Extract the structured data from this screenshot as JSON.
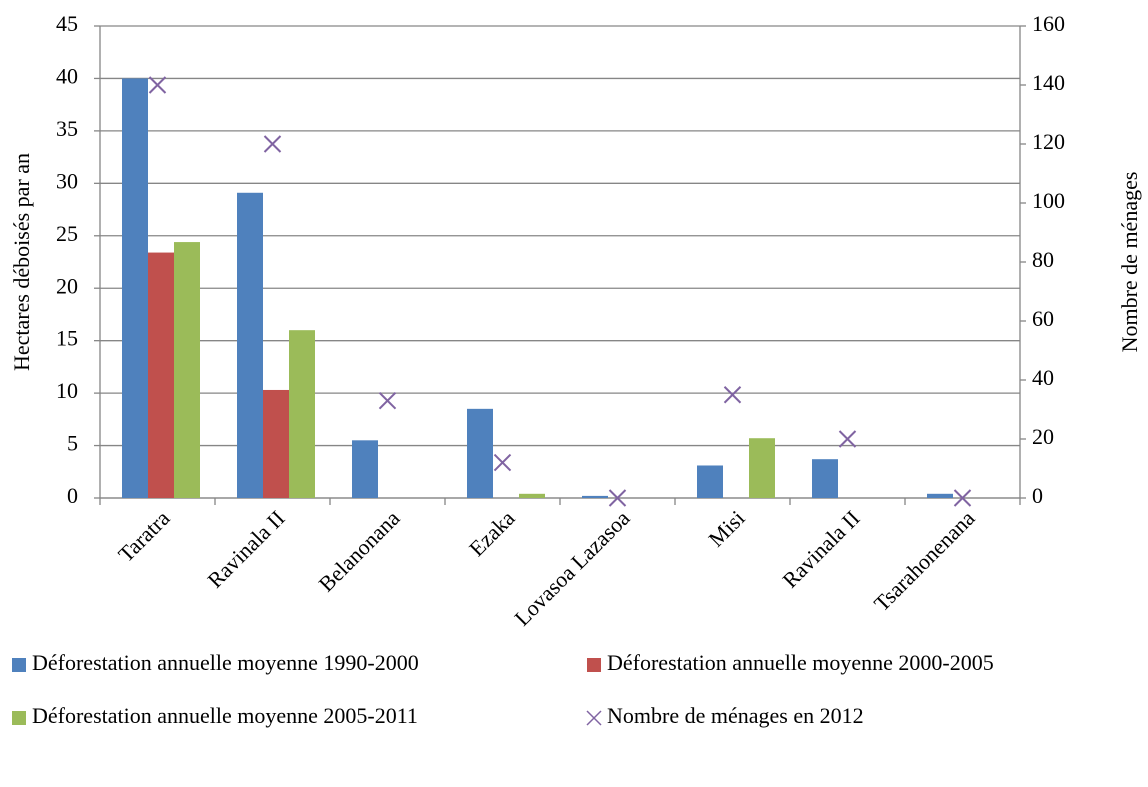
{
  "chart_data": {
    "type": "bar",
    "categories": [
      "Taratra",
      "Ravinala II",
      "Belanonana",
      "Ezaka",
      "Lovasoa Lazasoa",
      "Misi",
      "Ravinala II",
      "Tsarahonenana"
    ],
    "series": [
      {
        "name": "Déforestation annuelle moyenne 1990-2000",
        "color": "#4f81bd",
        "type": "bar",
        "values": [
          40,
          29.1,
          5.5,
          8.5,
          0.2,
          3.1,
          3.7,
          0.4
        ]
      },
      {
        "name": "Déforestation annuelle moyenne 2000-2005",
        "color": "#c0504d",
        "type": "bar",
        "values": [
          23.4,
          10.3,
          0,
          0,
          0,
          0,
          0,
          0
        ]
      },
      {
        "name": "Déforestation annuelle moyenne 2005-2011",
        "color": "#9bbb59",
        "type": "bar",
        "values": [
          24.4,
          16,
          0,
          0.4,
          0,
          5.7,
          0,
          0
        ]
      },
      {
        "name": "Nombre de ménages en 2012",
        "color": "#8064a2",
        "type": "scatter",
        "axis": "y2",
        "values": [
          140,
          120,
          33,
          12,
          0,
          35,
          20,
          0
        ]
      }
    ],
    "ylabel": "Hectares déboisés par an",
    "y2label": "Nombre de ménages",
    "ylim": [
      0,
      45
    ],
    "yticks": [
      0,
      5,
      10,
      15,
      20,
      25,
      30,
      35,
      40,
      45
    ],
    "y2lim": [
      0,
      160
    ],
    "y2ticks": [
      0,
      20,
      40,
      60,
      80,
      100,
      120,
      140,
      160
    ],
    "grid": true,
    "legend": "bottom"
  }
}
